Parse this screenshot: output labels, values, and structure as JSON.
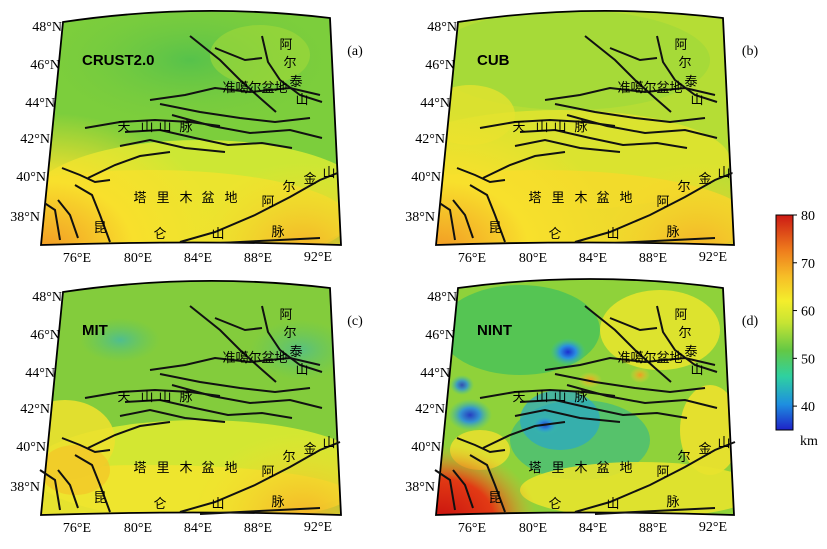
{
  "panels": [
    {
      "id": "a",
      "label": "(a)",
      "dataset": "CRUST2.0",
      "lat_labels": [
        "48°N",
        "46°N",
        "44°N",
        "42°N",
        "40°N",
        "38°N"
      ],
      "lon_labels": [
        "76°E",
        "80°E",
        "84°E",
        "88°E",
        "92°E"
      ],
      "places": [
        "准噶尔盆地",
        "天",
        "山",
        "山",
        "脉",
        "塔",
        "里",
        "木",
        "盆",
        "地",
        "阿",
        "尔",
        "金",
        "山",
        "昆",
        "仑",
        "山",
        "脉",
        "阿",
        "尔",
        "泰",
        "山"
      ]
    },
    {
      "id": "b",
      "label": "(b)",
      "dataset": "CUB",
      "lat_labels": [
        "48°N",
        "46°N",
        "44°N",
        "42°N",
        "40°N",
        "38°N"
      ],
      "lon_labels": [
        "76°E",
        "80°E",
        "84°E",
        "88°E",
        "92°E"
      ],
      "places": [
        "准噶尔盆地",
        "天",
        "山",
        "山",
        "脉",
        "塔",
        "里",
        "木",
        "盆",
        "地",
        "阿",
        "尔",
        "金",
        "山",
        "昆",
        "仑",
        "山",
        "脉",
        "阿",
        "尔",
        "泰",
        "山"
      ]
    },
    {
      "id": "c",
      "label": "(c)",
      "dataset": "MIT",
      "lat_labels": [
        "48°N",
        "46°N",
        "44°N",
        "42°N",
        "40°N",
        "38°N"
      ],
      "lon_labels": [
        "76°E",
        "80°E",
        "84°E",
        "88°E",
        "92°E"
      ],
      "places": [
        "准噶尔盆地",
        "天",
        "山",
        "山",
        "脉",
        "塔",
        "里",
        "木",
        "盆",
        "地",
        "阿",
        "尔",
        "金",
        "山",
        "昆",
        "仑",
        "山",
        "脉",
        "阿",
        "尔",
        "泰",
        "山"
      ]
    },
    {
      "id": "d",
      "label": "(d)",
      "dataset": "NINT",
      "lat_labels": [
        "48°N",
        "46°N",
        "44°N",
        "42°N",
        "40°N",
        "38°N"
      ],
      "lon_labels": [
        "76°E",
        "80°E",
        "84°E",
        "88°E",
        "92°E"
      ],
      "places": [
        "准噶尔盆地",
        "天",
        "山",
        "山",
        "脉",
        "塔",
        "里",
        "木",
        "盆",
        "地",
        "阿",
        "尔",
        "金",
        "山",
        "昆",
        "仑",
        "山",
        "脉",
        "阿",
        "尔",
        "泰",
        "山"
      ]
    }
  ],
  "colorbar": {
    "ticks": [
      "80",
      "70",
      "60",
      "50",
      "40"
    ],
    "unit": "km",
    "range": [
      35,
      80
    ],
    "colors": [
      "#1e22c8",
      "#1e8fe0",
      "#2fd1a0",
      "#7ad23a",
      "#e7f02a",
      "#f7c325",
      "#f08a1c",
      "#e04018",
      "#cc1a14"
    ]
  }
}
